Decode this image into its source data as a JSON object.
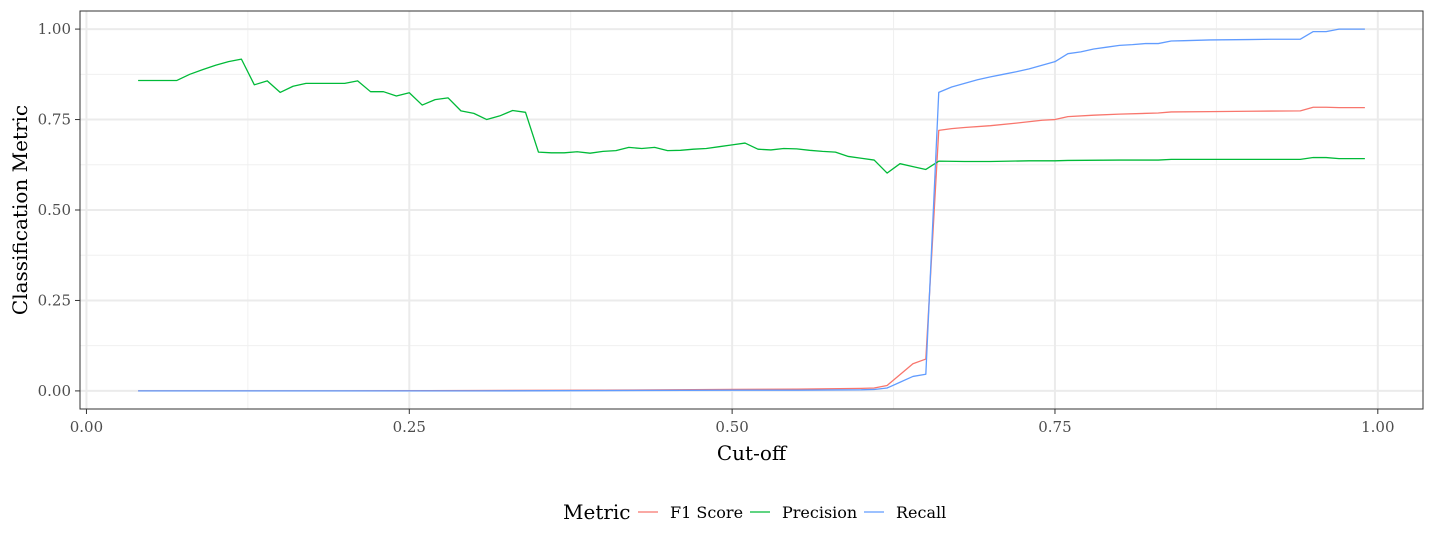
{
  "chart_data": {
    "type": "line",
    "xlabel": "Cut-off",
    "ylabel": "Classification Metric",
    "xlim": [
      -0.005,
      1.035
    ],
    "ylim": [
      -0.05,
      1.05
    ],
    "x_ticks": [
      0.0,
      0.25,
      0.5,
      0.75,
      1.0
    ],
    "x_tick_labels": [
      "0.00",
      "0.25",
      "0.50",
      "0.75",
      "1.00"
    ],
    "y_ticks": [
      0.0,
      0.25,
      0.5,
      0.75,
      1.0
    ],
    "y_tick_labels": [
      "0.00",
      "0.25",
      "0.50",
      "0.75",
      "1.00"
    ],
    "grid": true,
    "legend": {
      "title": "Metric",
      "position": "bottom"
    },
    "series": [
      {
        "name": "F1 Score",
        "color": "#F8766D",
        "points": [
          [
            0.04,
            0.0
          ],
          [
            0.1,
            0.0
          ],
          [
            0.2,
            0.0
          ],
          [
            0.3,
            0.001
          ],
          [
            0.4,
            0.002
          ],
          [
            0.5,
            0.004
          ],
          [
            0.55,
            0.005
          ],
          [
            0.6,
            0.007
          ],
          [
            0.61,
            0.008
          ],
          [
            0.62,
            0.015
          ],
          [
            0.63,
            0.045
          ],
          [
            0.64,
            0.075
          ],
          [
            0.65,
            0.088
          ],
          [
            0.66,
            0.72
          ],
          [
            0.67,
            0.725
          ],
          [
            0.68,
            0.728
          ],
          [
            0.7,
            0.733
          ],
          [
            0.72,
            0.74
          ],
          [
            0.74,
            0.748
          ],
          [
            0.75,
            0.75
          ],
          [
            0.76,
            0.758
          ],
          [
            0.78,
            0.762
          ],
          [
            0.8,
            0.765
          ],
          [
            0.83,
            0.768
          ],
          [
            0.84,
            0.771
          ],
          [
            0.87,
            0.772
          ],
          [
            0.9,
            0.773
          ],
          [
            0.94,
            0.774
          ],
          [
            0.95,
            0.784
          ],
          [
            0.96,
            0.784
          ],
          [
            0.97,
            0.783
          ],
          [
            0.99,
            0.783
          ]
        ]
      },
      {
        "name": "Precision",
        "color": "#00BA38",
        "points": [
          [
            0.04,
            0.858
          ],
          [
            0.05,
            0.858
          ],
          [
            0.06,
            0.858
          ],
          [
            0.07,
            0.858
          ],
          [
            0.08,
            0.875
          ],
          [
            0.09,
            0.888
          ],
          [
            0.1,
            0.9
          ],
          [
            0.11,
            0.91
          ],
          [
            0.12,
            0.917
          ],
          [
            0.13,
            0.846
          ],
          [
            0.14,
            0.857
          ],
          [
            0.15,
            0.825
          ],
          [
            0.16,
            0.842
          ],
          [
            0.17,
            0.85
          ],
          [
            0.18,
            0.85
          ],
          [
            0.19,
            0.85
          ],
          [
            0.2,
            0.85
          ],
          [
            0.21,
            0.857
          ],
          [
            0.22,
            0.827
          ],
          [
            0.23,
            0.827
          ],
          [
            0.24,
            0.815
          ],
          [
            0.25,
            0.824
          ],
          [
            0.26,
            0.79
          ],
          [
            0.27,
            0.805
          ],
          [
            0.28,
            0.81
          ],
          [
            0.29,
            0.774
          ],
          [
            0.3,
            0.767
          ],
          [
            0.31,
            0.75
          ],
          [
            0.32,
            0.76
          ],
          [
            0.33,
            0.775
          ],
          [
            0.34,
            0.77
          ],
          [
            0.35,
            0.66
          ],
          [
            0.36,
            0.658
          ],
          [
            0.37,
            0.658
          ],
          [
            0.38,
            0.661
          ],
          [
            0.39,
            0.657
          ],
          [
            0.4,
            0.662
          ],
          [
            0.41,
            0.664
          ],
          [
            0.42,
            0.673
          ],
          [
            0.43,
            0.67
          ],
          [
            0.44,
            0.673
          ],
          [
            0.45,
            0.664
          ],
          [
            0.46,
            0.665
          ],
          [
            0.47,
            0.668
          ],
          [
            0.48,
            0.67
          ],
          [
            0.49,
            0.675
          ],
          [
            0.5,
            0.68
          ],
          [
            0.51,
            0.685
          ],
          [
            0.52,
            0.668
          ],
          [
            0.53,
            0.666
          ],
          [
            0.54,
            0.67
          ],
          [
            0.55,
            0.669
          ],
          [
            0.56,
            0.665
          ],
          [
            0.57,
            0.662
          ],
          [
            0.58,
            0.66
          ],
          [
            0.59,
            0.648
          ],
          [
            0.6,
            0.643
          ],
          [
            0.61,
            0.638
          ],
          [
            0.62,
            0.602
          ],
          [
            0.63,
            0.628
          ],
          [
            0.64,
            0.62
          ],
          [
            0.65,
            0.612
          ],
          [
            0.66,
            0.635
          ],
          [
            0.68,
            0.634
          ],
          [
            0.7,
            0.634
          ],
          [
            0.73,
            0.636
          ],
          [
            0.75,
            0.636
          ],
          [
            0.76,
            0.637
          ],
          [
            0.8,
            0.638
          ],
          [
            0.83,
            0.638
          ],
          [
            0.84,
            0.64
          ],
          [
            0.9,
            0.64
          ],
          [
            0.94,
            0.64
          ],
          [
            0.95,
            0.645
          ],
          [
            0.96,
            0.645
          ],
          [
            0.97,
            0.642
          ],
          [
            0.99,
            0.642
          ]
        ]
      },
      {
        "name": "Recall",
        "color": "#619CFF",
        "points": [
          [
            0.04,
            0.0
          ],
          [
            0.1,
            0.0
          ],
          [
            0.2,
            0.0
          ],
          [
            0.3,
            0.0
          ],
          [
            0.4,
            0.001
          ],
          [
            0.5,
            0.002
          ],
          [
            0.55,
            0.002
          ],
          [
            0.6,
            0.003
          ],
          [
            0.61,
            0.004
          ],
          [
            0.62,
            0.008
          ],
          [
            0.63,
            0.024
          ],
          [
            0.64,
            0.04
          ],
          [
            0.65,
            0.046
          ],
          [
            0.66,
            0.825
          ],
          [
            0.67,
            0.84
          ],
          [
            0.68,
            0.85
          ],
          [
            0.69,
            0.86
          ],
          [
            0.7,
            0.868
          ],
          [
            0.71,
            0.875
          ],
          [
            0.72,
            0.882
          ],
          [
            0.73,
            0.89
          ],
          [
            0.74,
            0.9
          ],
          [
            0.75,
            0.91
          ],
          [
            0.76,
            0.932
          ],
          [
            0.77,
            0.937
          ],
          [
            0.78,
            0.945
          ],
          [
            0.79,
            0.95
          ],
          [
            0.8,
            0.955
          ],
          [
            0.81,
            0.957
          ],
          [
            0.82,
            0.96
          ],
          [
            0.83,
            0.96
          ],
          [
            0.84,
            0.967
          ],
          [
            0.85,
            0.968
          ],
          [
            0.87,
            0.97
          ],
          [
            0.9,
            0.971
          ],
          [
            0.92,
            0.972
          ],
          [
            0.94,
            0.972
          ],
          [
            0.95,
            0.993
          ],
          [
            0.96,
            0.993
          ],
          [
            0.97,
            1.0
          ],
          [
            0.99,
            1.0
          ]
        ]
      }
    ]
  }
}
